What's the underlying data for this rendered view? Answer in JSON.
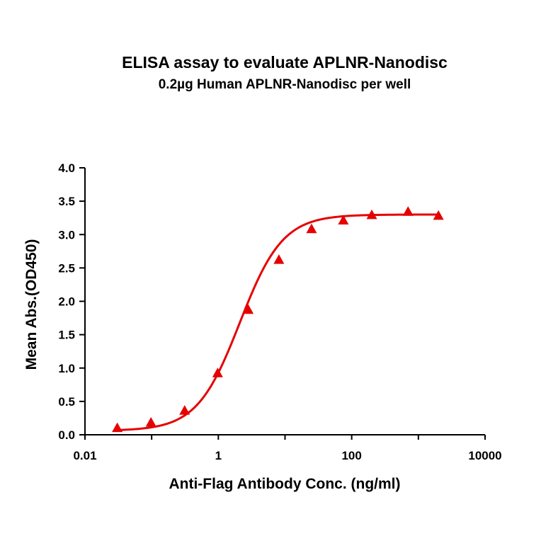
{
  "chart_data": {
    "type": "scatter",
    "title": "ELISA assay to evaluate APLNR-Nanodisc",
    "subtitle": "0.2µg Human APLNR-Nanodisc per well",
    "xlabel": "Anti-Flag Antibody Conc. (ng/ml)",
    "ylabel": "Mean Abs.(OD450)",
    "x_scale": "log",
    "xlim": [
      0.01,
      10000
    ],
    "ylim": [
      0,
      4.0
    ],
    "x_ticks": [
      "0.01",
      "1",
      "100",
      "10000"
    ],
    "y_ticks": [
      "0.0",
      "0.5",
      "1.0",
      "1.5",
      "2.0",
      "2.5",
      "3.0",
      "3.5",
      "4.0"
    ],
    "grid": false,
    "series": [
      {
        "marker": "triangle",
        "color": "#e60000",
        "fit": "4PL",
        "x": [
          0.0305,
          0.0977,
          0.3125,
          0.9766,
          2.8125,
          8.1,
          25.0,
          75.0,
          200.0,
          700.0,
          2000.0
        ],
        "y": [
          0.1,
          0.18,
          0.36,
          0.92,
          1.87,
          2.62,
          3.08,
          3.21,
          3.29,
          3.34,
          3.28
        ]
      }
    ]
  }
}
